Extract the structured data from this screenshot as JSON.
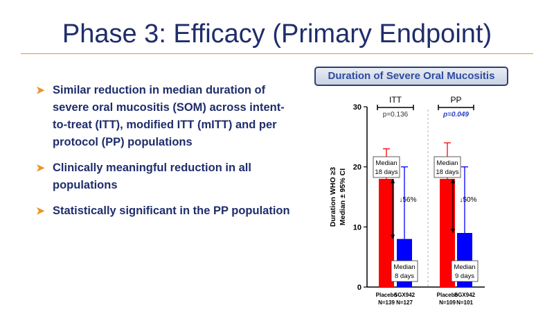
{
  "slide": {
    "title": "Phase 3: Efficacy (Primary Endpoint)",
    "bullets": [
      "Similar reduction in median duration of severe oral mucositis (SOM) across intent-to-treat (ITT),  modified ITT (mITT) and per protocol (PP) populations",
      "Clinically meaningful reduction in all populations",
      "Statistically significant in the PP population"
    ]
  },
  "chart_data": {
    "type": "bar",
    "title": "Duration of Severe Oral Mucositis",
    "ylabel_line1": "Duration WHO ≥3",
    "ylabel_line2": "Median ± 95% CI",
    "ylim": [
      0,
      30
    ],
    "yticks": [
      0,
      10,
      20,
      30
    ],
    "groups": [
      {
        "name": "ITT",
        "p_value": "p=0.136",
        "significant": false,
        "reduction": "↓56%",
        "bars": [
          {
            "label": "Placebo",
            "n": "N=139",
            "value": 18,
            "ci_upper": 23,
            "color": "#ff0000",
            "annotation": [
              "Median",
              "18 days"
            ]
          },
          {
            "label": "SGX942",
            "n": "N=127",
            "value": 8,
            "ci_upper": 20,
            "color": "#0000ff",
            "annotation": [
              "Median",
              "8 days"
            ]
          }
        ]
      },
      {
        "name": "PP",
        "p_value": "p=0.049",
        "significant": true,
        "reduction": "↓50%",
        "bars": [
          {
            "label": "Placebo",
            "n": "N=109",
            "value": 18,
            "ci_upper": 24,
            "color": "#ff0000",
            "annotation": [
              "Median",
              "18 days"
            ]
          },
          {
            "label": "SGX942",
            "n": "N=101",
            "value": 9,
            "ci_upper": 20,
            "color": "#0000ff",
            "annotation": [
              "Median",
              "9 days"
            ]
          }
        ]
      }
    ]
  }
}
